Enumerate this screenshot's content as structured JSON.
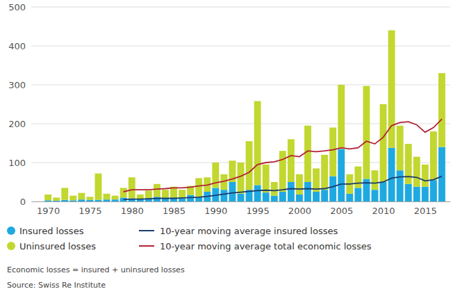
{
  "chart_data": {
    "type": "bar",
    "stacked": true,
    "grid": true,
    "legend": "bottom",
    "x": [
      1970,
      1971,
      1972,
      1973,
      1974,
      1975,
      1976,
      1977,
      1978,
      1979,
      1980,
      1981,
      1982,
      1983,
      1984,
      1985,
      1986,
      1987,
      1988,
      1989,
      1990,
      1991,
      1992,
      1993,
      1994,
      1995,
      1996,
      1997,
      1998,
      1999,
      2000,
      2001,
      2002,
      2003,
      2004,
      2005,
      2006,
      2007,
      2008,
      2009,
      2010,
      2011,
      2012,
      2013,
      2014,
      2015,
      2016,
      2017
    ],
    "xlim": [
      1968,
      2018
    ],
    "xticks": [
      1970,
      1975,
      1980,
      1985,
      1990,
      1995,
      2000,
      2005,
      2010,
      2015
    ],
    "ylim": [
      0,
      500
    ],
    "yticks": [
      0,
      100,
      200,
      300,
      400,
      500
    ],
    "series": [
      {
        "name": "Insured losses",
        "type": "bar",
        "color": "#1fa9e1",
        "values": [
          3,
          2,
          4,
          3,
          5,
          4,
          4,
          5,
          5,
          10,
          8,
          6,
          8,
          12,
          8,
          10,
          8,
          17,
          12,
          25,
          35,
          30,
          50,
          20,
          30,
          42,
          23,
          15,
          25,
          50,
          18,
          50,
          25,
          30,
          65,
          135,
          20,
          35,
          58,
          30,
          50,
          138,
          80,
          45,
          38,
          38,
          55,
          140
        ]
      },
      {
        "name": "Uninsured losses",
        "type": "bar",
        "color": "#c2d730",
        "values": [
          15,
          8,
          31,
          12,
          17,
          8,
          68,
          15,
          10,
          25,
          54,
          12,
          20,
          33,
          22,
          28,
          22,
          23,
          48,
          37,
          65,
          40,
          55,
          80,
          125,
          216,
          72,
          35,
          105,
          110,
          52,
          145,
          60,
          90,
          125,
          165,
          50,
          55,
          239,
          50,
          200,
          302,
          115,
          103,
          77,
          57,
          125,
          190
        ]
      },
      {
        "name": "10-year moving average insured losses",
        "type": "line",
        "color": "#1b3b6f",
        "values": [
          null,
          null,
          null,
          null,
          null,
          null,
          null,
          null,
          null,
          5,
          6,
          6,
          7,
          8,
          8,
          8,
          9,
          10,
          11,
          13,
          16,
          19,
          22,
          24,
          26,
          28,
          29,
          28,
          30,
          33,
          32,
          33,
          32,
          33,
          38,
          45,
          45,
          47,
          48,
          47,
          50,
          60,
          63,
          64,
          62,
          53,
          56,
          65
        ]
      },
      {
        "name": "10-year moving average total economic losses",
        "type": "line",
        "color": "#b22234",
        "values": [
          null,
          null,
          null,
          null,
          null,
          null,
          null,
          null,
          null,
          25,
          30,
          30,
          30,
          32,
          33,
          35,
          35,
          37,
          40,
          42,
          48,
          52,
          58,
          65,
          75,
          95,
          100,
          102,
          108,
          118,
          115,
          130,
          128,
          130,
          133,
          138,
          135,
          138,
          155,
          148,
          165,
          195,
          203,
          205,
          197,
          178,
          190,
          212
        ]
      }
    ],
    "annotations": [
      "Economic losses = insured + uninsured losses",
      "Source: Swiss Re Institute"
    ]
  }
}
